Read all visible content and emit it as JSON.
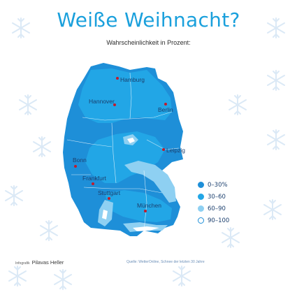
{
  "title": "Weiße Weihnacht?",
  "subtitle": "Wahrscheinlichkeit in Prozent:",
  "colors": {
    "band_0_30": "#1e8fd8",
    "band_30_60": "#22a6e6",
    "band_60_90": "#8ed0f2",
    "band_90_100": "#ffffff",
    "title": "#1aa0dc",
    "city_dot": "#c21b2b"
  },
  "cities": [
    {
      "name": "Hamburg"
    },
    {
      "name": "Hannover"
    },
    {
      "name": "Berlin"
    },
    {
      "name": "Leipzig"
    },
    {
      "name": "Bonn"
    },
    {
      "name": "Frankfurt"
    },
    {
      "name": "Stuttgart"
    },
    {
      "name": "München"
    }
  ],
  "legend": [
    {
      "label": "0–30%",
      "color": "#1e8fd8"
    },
    {
      "label": "30–60",
      "color": "#22a6e6"
    },
    {
      "label": "60–90",
      "color": "#8ed0f2"
    },
    {
      "label": "90–100",
      "color": "#ffffff"
    }
  ],
  "footer": {
    "infografik_label": "Infografik",
    "author": "Pilavas Heller",
    "source": "Quelle: WetterOnline, Schnee der letzten 30 Jahre"
  }
}
